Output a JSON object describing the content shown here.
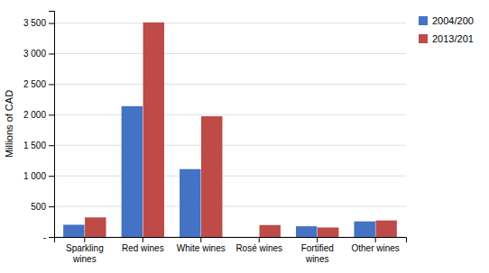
{
  "chart_data": {
    "type": "bar",
    "categories": [
      "Sparkling\nwines",
      "Red wines",
      "White wines",
      "Rosé wines",
      "Fortified\nwines",
      "Other wines"
    ],
    "series": [
      {
        "name": "2004/200",
        "color": "#4472C4",
        "values": [
          200,
          2140,
          1110,
          0,
          175,
          255
        ]
      },
      {
        "name": "2013/201",
        "color": "#BE4B48",
        "values": [
          320,
          3510,
          1975,
          195,
          155,
          270
        ]
      }
    ],
    "ylabel": "Millions of CAD",
    "ylim": [
      0,
      3700
    ],
    "yticks": [
      {
        "value": 0,
        "label": "-"
      },
      500,
      {
        "value": 1000,
        "label": "1 000"
      },
      {
        "value": 1500,
        "label": "1 500"
      },
      {
        "value": 2000,
        "label": "2 000"
      },
      {
        "value": 2500,
        "label": "2 500"
      },
      {
        "value": 3000,
        "label": "3 000"
      },
      {
        "value": 3500,
        "label": "3 500"
      }
    ],
    "grid": true,
    "legend": "right"
  }
}
